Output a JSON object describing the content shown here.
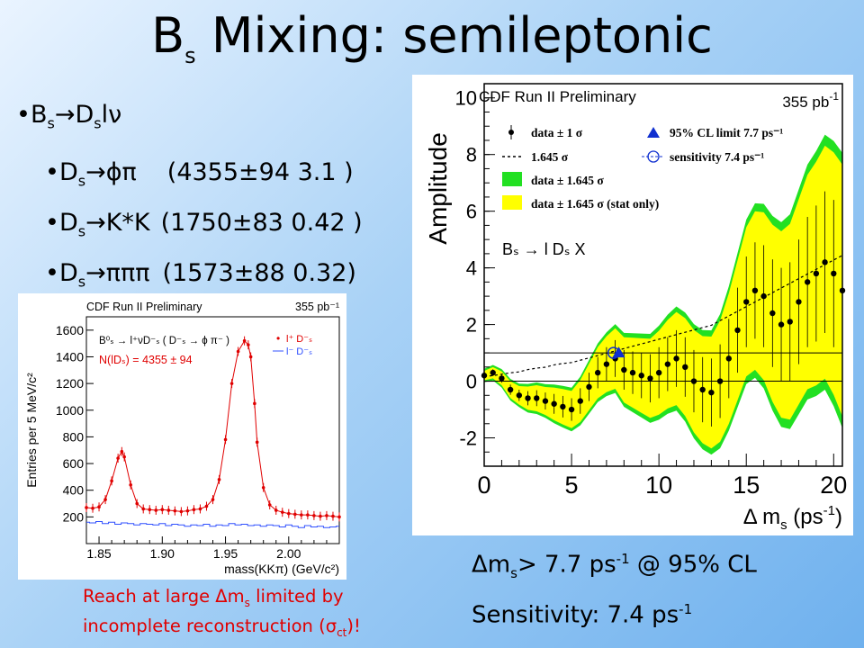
{
  "slide": {
    "title_main": "B",
    "title_sub": "s",
    "title_rest": " Mixing: semileptonic"
  },
  "bullets": [
    {
      "label": "B",
      "sub": "s",
      "rest": "D",
      "sub2": "s",
      "tail": "lν"
    },
    {
      "pre": "D",
      "sub": "s",
      "arrow": "→",
      "mode": "ϕπ",
      "yield": "(4355±94  3.1   )"
    },
    {
      "pre": "D",
      "sub": "s",
      "arrow": "→",
      "mode": "K*K",
      "yield": "(1750±83  0.42 )"
    },
    {
      "pre": "D",
      "sub": "s",
      "arrow": "→",
      "mode": "πππ",
      "yield": "(1573±88  0.32)"
    }
  ],
  "limit": {
    "delta": "Δm",
    "sub": "s",
    "text": "> 7.7 ps",
    "sup": "-1",
    "tail": " @ 95% CL"
  },
  "sensitivity": {
    "text": "Sensitivity: 7.4 ps",
    "sup": "-1"
  },
  "note": {
    "line1_pre": "Reach at large Δm",
    "line1_sub": "s",
    "line1_post": " limited by",
    "line2_pre": "incomplete reconstruction (σ",
    "line2_sub": "ct",
    "line2_post": ")!"
  },
  "chart_data": [
    {
      "type": "line",
      "header_left": "CDF Run II Preliminary",
      "header_right": "355 pb⁻¹",
      "ylabel": "Entries per 5 MeV/c²",
      "xlabel": "mass(KKπ) (GeV/c²)",
      "xlim": [
        1.84,
        2.04
      ],
      "ylim": [
        0,
        1700
      ],
      "xticks": [
        1.85,
        1.9,
        1.95,
        2.0
      ],
      "xtick_labels": [
        "1.85",
        "1.90",
        "1.95",
        "2.00"
      ],
      "yticks": [
        200,
        400,
        600,
        800,
        1000,
        1200,
        1400,
        1600
      ],
      "ytick_labels": [
        "200",
        "400",
        "600",
        "800",
        "1000",
        "1200",
        "1400",
        "1600"
      ],
      "decay": "B⁰ₛ → l⁺νD⁻ₛ ( D⁻ₛ → ϕ π⁻ )",
      "yield_text": "N(lDₛ) = 4355 ± 94",
      "legend": [
        {
          "name": "l⁺ D⁻ₛ",
          "color": "#e00000"
        },
        {
          "name": "l⁻ D⁻ₛ",
          "color": "#3050ff"
        }
      ],
      "series": [
        {
          "name": "l⁺ D⁻ₛ",
          "color": "#e00000",
          "x": [
            1.84,
            1.845,
            1.85,
            1.855,
            1.86,
            1.865,
            1.868,
            1.87,
            1.875,
            1.88,
            1.885,
            1.89,
            1.895,
            1.9,
            1.905,
            1.91,
            1.915,
            1.92,
            1.925,
            1.93,
            1.935,
            1.94,
            1.945,
            1.95,
            1.955,
            1.96,
            1.965,
            1.968,
            1.97,
            1.973,
            1.975,
            1.98,
            1.985,
            1.99,
            1.995,
            2.0,
            2.005,
            2.01,
            2.015,
            2.02,
            2.025,
            2.03,
            2.035,
            2.04
          ],
          "y": [
            270,
            265,
            275,
            330,
            470,
            640,
            690,
            650,
            440,
            300,
            260,
            255,
            250,
            255,
            250,
            245,
            240,
            245,
            255,
            260,
            280,
            330,
            480,
            780,
            1200,
            1440,
            1520,
            1490,
            1400,
            1050,
            760,
            420,
            290,
            250,
            235,
            225,
            220,
            215,
            215,
            210,
            205,
            210,
            205,
            200
          ]
        },
        {
          "name": "l⁻ D⁻ₛ",
          "color": "#3050ff",
          "x": [
            1.84,
            1.845,
            1.85,
            1.855,
            1.86,
            1.865,
            1.87,
            1.875,
            1.88,
            1.885,
            1.89,
            1.895,
            1.9,
            1.905,
            1.91,
            1.915,
            1.92,
            1.925,
            1.93,
            1.935,
            1.94,
            1.945,
            1.95,
            1.955,
            1.96,
            1.965,
            1.97,
            1.975,
            1.98,
            1.985,
            1.99,
            1.995,
            2.0,
            2.005,
            2.01,
            2.015,
            2.02,
            2.025,
            2.03,
            2.035,
            2.04
          ],
          "y": [
            160,
            155,
            165,
            150,
            160,
            145,
            155,
            150,
            140,
            150,
            145,
            140,
            150,
            135,
            145,
            140,
            130,
            140,
            135,
            145,
            130,
            140,
            135,
            150,
            140,
            145,
            135,
            140,
            130,
            140,
            135,
            125,
            140,
            130,
            120,
            135,
            125,
            130,
            120,
            125,
            130
          ]
        }
      ]
    },
    {
      "type": "line",
      "header_left": "CDF Run II Preliminary",
      "header_right": "355 pb",
      "header_right_sup": "-1",
      "ylabel": "Amplitude",
      "xlabel_main": "Δ m",
      "xlabel_sub": "s",
      "xlabel_unit": " (ps",
      "xlabel_sup": "-1",
      "xlabel_close": ")",
      "xlim": [
        0,
        20.5
      ],
      "ylim": [
        -3,
        10.5
      ],
      "xticks": [
        0,
        5,
        10,
        15,
        20
      ],
      "xtick_labels": [
        "0",
        "5",
        "10",
        "15",
        "20"
      ],
      "yticks": [
        -2,
        0,
        2,
        4,
        6,
        8,
        10
      ],
      "ytick_labels": [
        "-2",
        "0",
        "2",
        "4",
        "6",
        "8",
        "10"
      ],
      "reference_line": 1,
      "legend": [
        {
          "name": "data ± 1 σ",
          "kind": "point"
        },
        {
          "name": "95% CL limit 7.7 ps⁻¹",
          "kind": "triangle",
          "color": "#1030d0"
        },
        {
          "name": "1.645 σ",
          "kind": "dashed"
        },
        {
          "name": "sensitivity  7.4 ps⁻¹",
          "kind": "circle",
          "color": "#1030d0"
        },
        {
          "name": "data ± 1.645 σ",
          "kind": "box",
          "color": "#22e022"
        },
        {
          "name": "data ± 1.645 σ (stat only)",
          "kind": "box",
          "color": "#ffff00"
        }
      ],
      "annotation": "Bₛ → l Dₛ X",
      "limit_marker": {
        "x": 7.7,
        "y": 1
      },
      "sensitivity_marker": {
        "x": 7.4,
        "y": 1
      },
      "series": [
        {
          "name": "data ± 1 σ",
          "x": [
            0.0,
            0.5,
            1.0,
            1.5,
            2.0,
            2.5,
            3.0,
            3.5,
            4.0,
            4.5,
            5.0,
            5.5,
            6.0,
            6.5,
            7.0,
            7.5,
            8.0,
            8.5,
            9.0,
            9.5,
            10.0,
            10.5,
            11.0,
            11.5,
            12.0,
            12.5,
            13.0,
            13.5,
            14.0,
            14.5,
            15.0,
            15.5,
            16.0,
            16.5,
            17.0,
            17.5,
            18.0,
            18.5,
            19.0,
            19.5,
            20.0,
            20.5
          ],
          "y": [
            0.2,
            0.3,
            0.1,
            -0.3,
            -0.5,
            -0.6,
            -0.6,
            -0.7,
            -0.8,
            -0.9,
            -1.0,
            -0.7,
            -0.2,
            0.3,
            0.6,
            0.8,
            0.4,
            0.3,
            0.2,
            0.1,
            0.3,
            0.6,
            0.8,
            0.5,
            0.0,
            -0.3,
            -0.4,
            0.0,
            0.8,
            1.8,
            2.8,
            3.2,
            3.0,
            2.4,
            2.0,
            2.1,
            2.8,
            3.5,
            3.8,
            4.2,
            3.8,
            3.2
          ],
          "err": [
            0.1,
            0.12,
            0.15,
            0.18,
            0.2,
            0.25,
            0.28,
            0.3,
            0.35,
            0.38,
            0.4,
            0.45,
            0.5,
            0.55,
            0.6,
            0.65,
            0.7,
            0.75,
            0.8,
            0.85,
            0.9,
            0.95,
            1.0,
            1.05,
            1.1,
            1.15,
            1.2,
            1.3,
            1.4,
            1.5,
            1.6,
            1.7,
            1.8,
            1.9,
            2.0,
            2.1,
            2.2,
            2.3,
            2.4,
            2.5,
            2.6,
            2.7
          ]
        }
      ]
    }
  ]
}
